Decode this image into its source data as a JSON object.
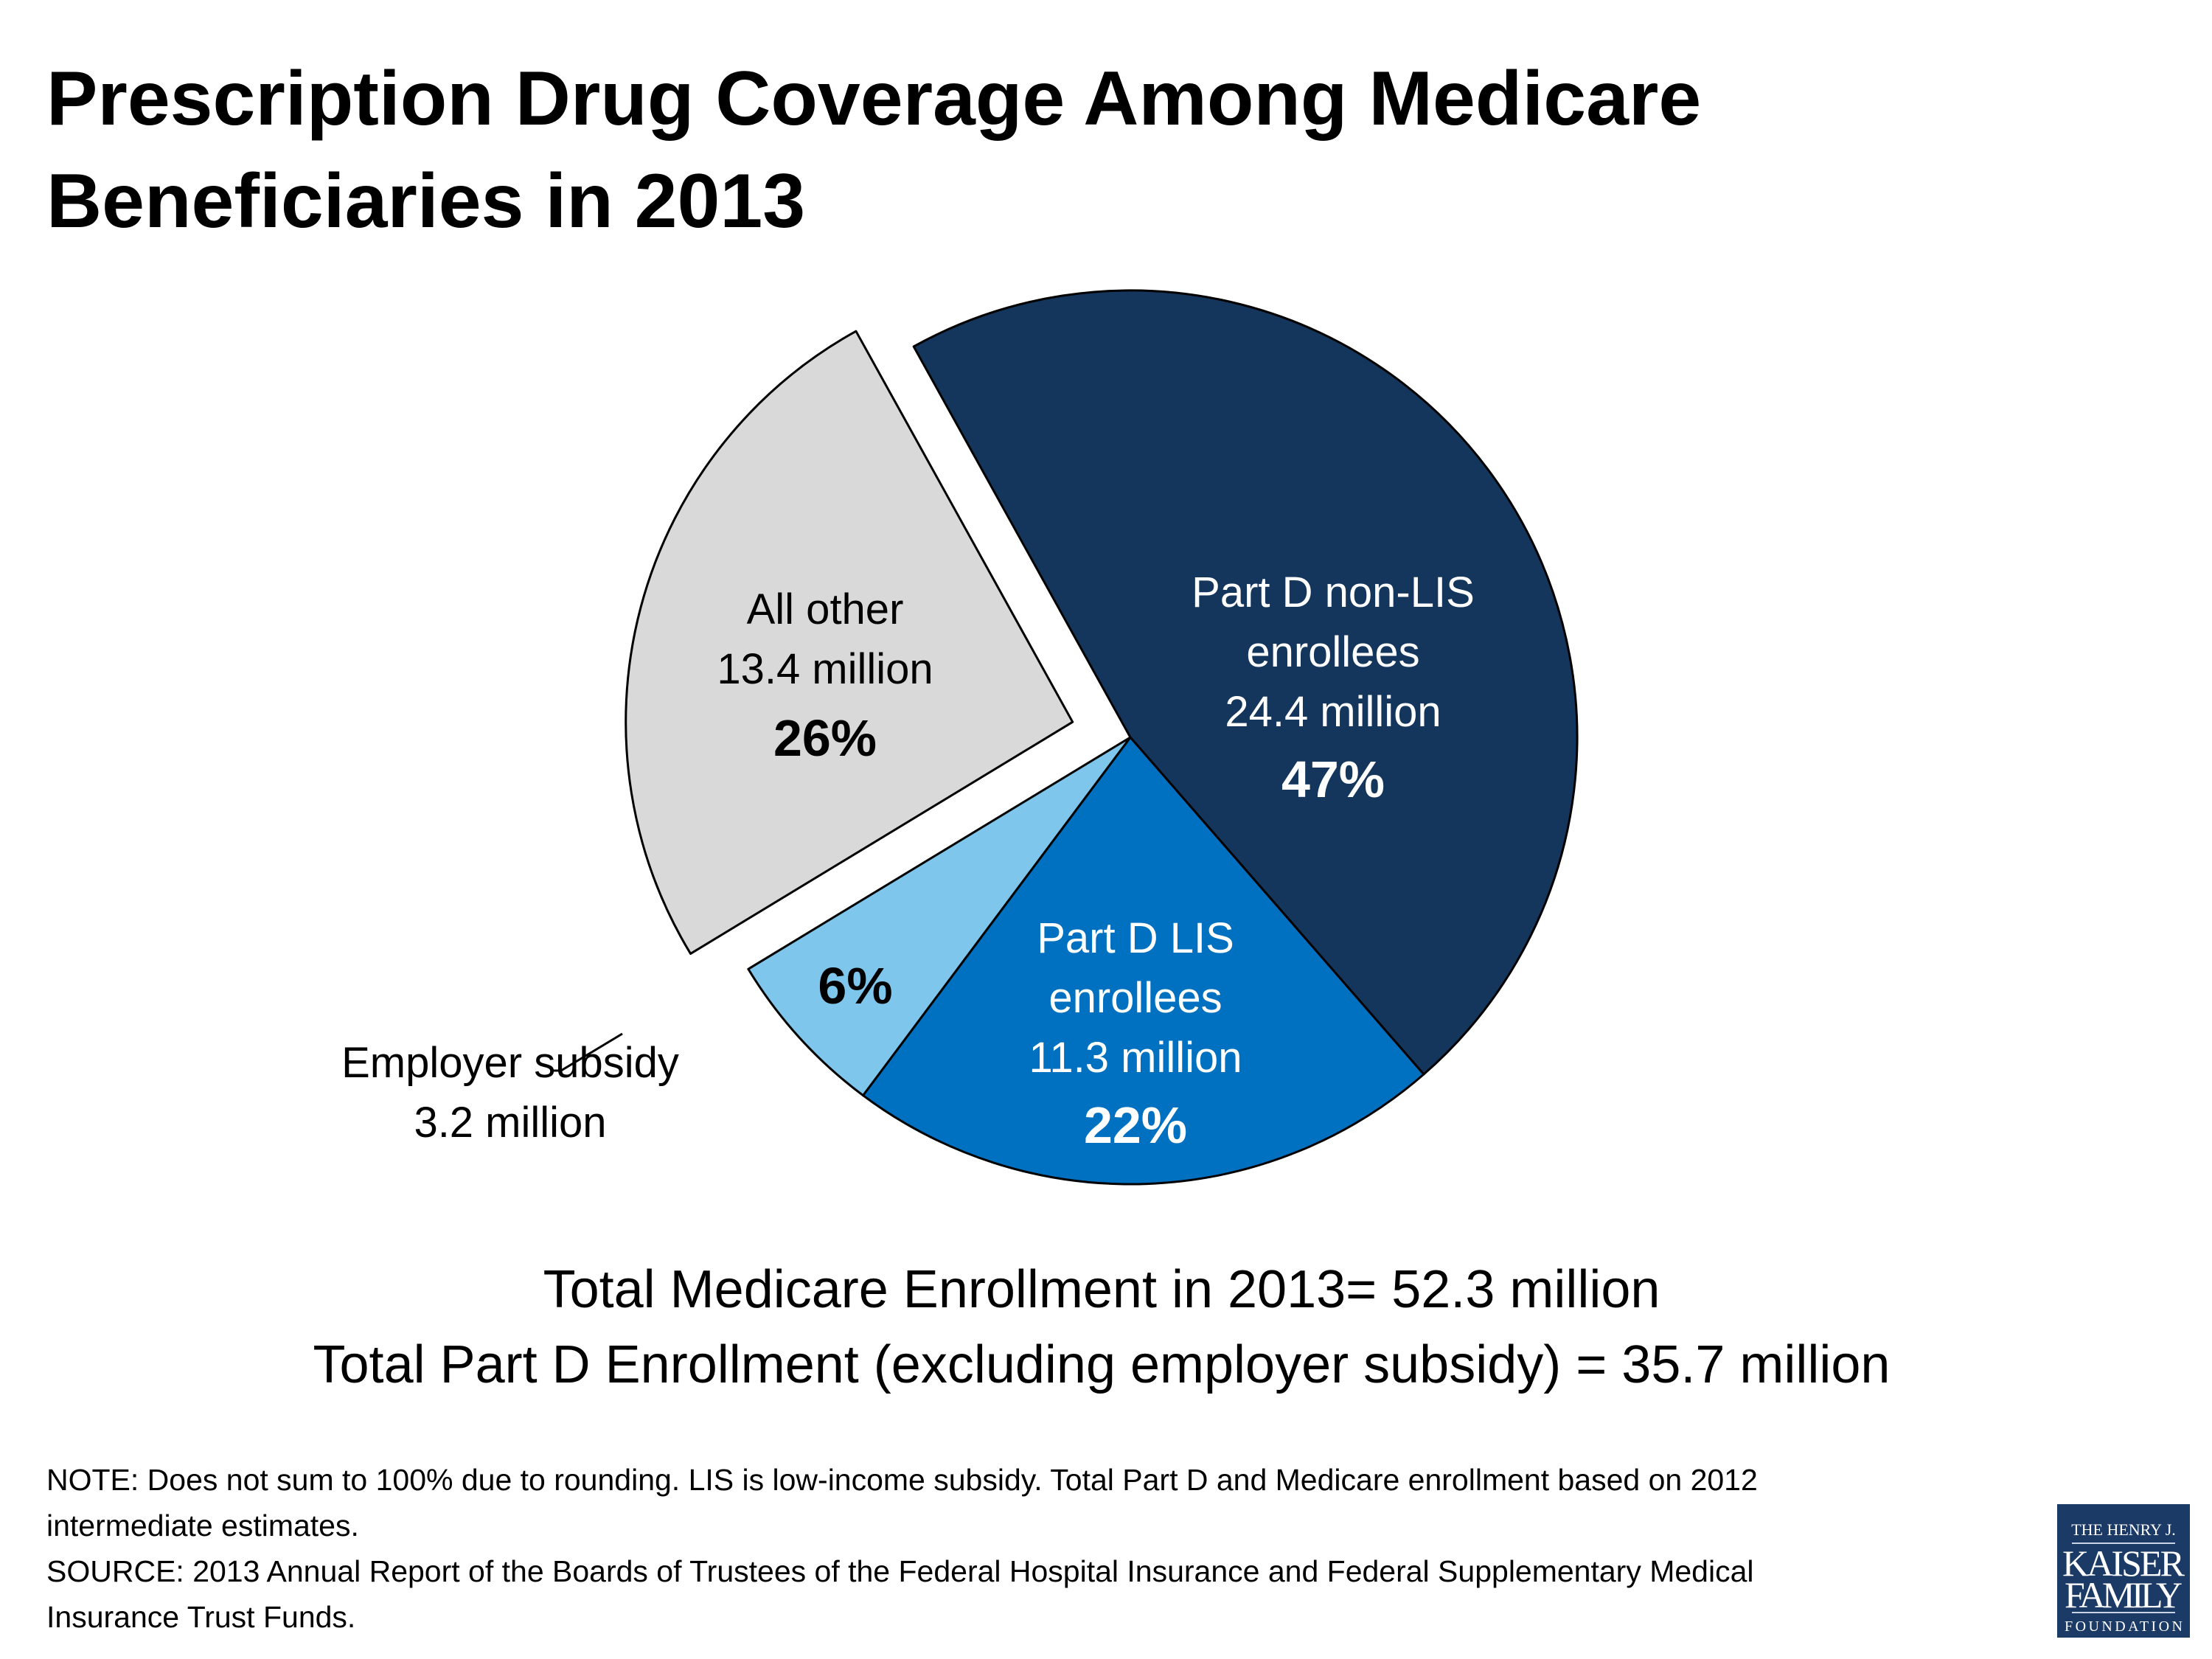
{
  "title_lines": [
    "Prescription Drug Coverage Among Medicare",
    "Beneficiaries in 2013"
  ],
  "chart_data": {
    "type": "pie",
    "title": "Prescription Drug Coverage Among Medicare Beneficiaries in 2013",
    "unit": "million",
    "slices": [
      {
        "label_lines": [
          "Part D non-LIS",
          "enrollees"
        ],
        "value_label": "24.4 million",
        "value": 24.4,
        "percent_label": "47%",
        "color": "#14365d"
      },
      {
        "label_lines": [
          "Part D LIS",
          "enrollees"
        ],
        "value_label": "11.3 million",
        "value": 11.3,
        "percent_label": "22%",
        "color": "#0070c0"
      },
      {
        "label_lines": [
          "Employer subsidy"
        ],
        "value_label": "3.2 million",
        "value": 3.2,
        "percent_label": "6%",
        "color": "#7fc6ec"
      },
      {
        "label_lines": [
          "All other"
        ],
        "value_label": "13.4 million",
        "value": 13.4,
        "percent_label": "26%",
        "color": "#d9d9d9",
        "exploded": true
      }
    ]
  },
  "totals": [
    "Total Medicare Enrollment in 2013= 52.3 million",
    "Total Part D Enrollment (excluding employer subsidy) = 35.7 million"
  ],
  "notes": [
    "NOTE: Does not sum to 100% due to rounding.  LIS is low-income subsidy.  Total Part D and Medicare enrollment based on 2012",
    "intermediate estimates.",
    "SOURCE: 2013 Annual Report of the Boards of Trustees of the Federal Hospital Insurance and Federal Supplementary Medical",
    "Insurance Trust Funds."
  ],
  "logo": {
    "lines": [
      "THE HENRY J.",
      "KAISER",
      "FAMILY",
      "FOUNDATION"
    ],
    "color": "#1b3a66"
  }
}
